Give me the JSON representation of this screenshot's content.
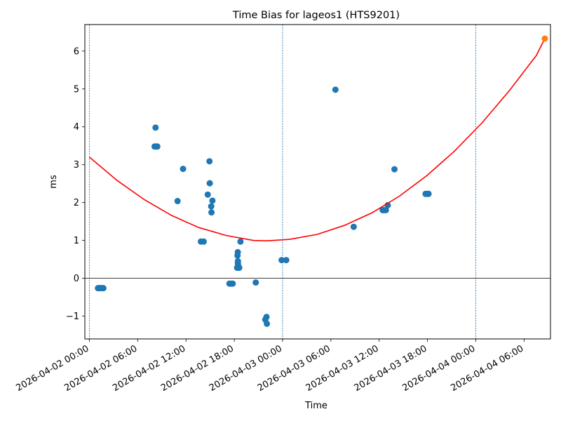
{
  "chart_data": {
    "type": "scatter",
    "title": "Time Bias for lageos1 (HTS9201)",
    "xlabel": "Time",
    "ylabel": "ms",
    "xlim": [
      "2026-04-01 23:26",
      "2026-04-04 09:17"
    ],
    "ylim": [
      -1.6,
      6.7
    ],
    "x_ticks": [
      "2026-04-02 00:00",
      "2026-04-02 06:00",
      "2026-04-02 12:00",
      "2026-04-02 18:00",
      "2026-04-03 00:00",
      "2026-04-03 06:00",
      "2026-04-03 12:00",
      "2026-04-03 18:00",
      "2026-04-04 00:00",
      "2026-04-04 06:00"
    ],
    "y_ticks": [
      -1,
      0,
      1,
      2,
      3,
      4,
      5,
      6
    ],
    "y_tick_labels": [
      "−1",
      "0",
      "1",
      "2",
      "3",
      "4",
      "5",
      "6"
    ],
    "day_boundaries": [
      "2026-04-02 00:00",
      "2026-04-03 00:00",
      "2026-04-04 00:00"
    ],
    "zero_line": 0,
    "grid": false,
    "colors": {
      "observations": "#1f77b4",
      "fit": "#ff0000",
      "prediction": "#ff7f0e",
      "day_line": "#1f77b4",
      "zero_line": "#000000"
    },
    "observations": [
      {
        "x": "2026-04-02 01:04",
        "y": -0.26
      },
      {
        "x": "2026-04-02 01:12",
        "y": -0.26
      },
      {
        "x": "2026-04-02 01:20",
        "y": -0.26
      },
      {
        "x": "2026-04-02 01:28",
        "y": -0.26
      },
      {
        "x": "2026-04-02 01:36",
        "y": -0.26
      },
      {
        "x": "2026-04-02 01:44",
        "y": -0.26
      },
      {
        "x": "2026-04-02 08:06",
        "y": 3.48
      },
      {
        "x": "2026-04-02 08:13",
        "y": 3.98
      },
      {
        "x": "2026-04-02 08:18",
        "y": 3.48
      },
      {
        "x": "2026-04-02 08:26",
        "y": 3.48
      },
      {
        "x": "2026-04-02 10:57",
        "y": 2.04
      },
      {
        "x": "2026-04-02 11:38",
        "y": 2.89
      },
      {
        "x": "2026-04-02 13:51",
        "y": 0.97
      },
      {
        "x": "2026-04-02 14:12",
        "y": 0.97
      },
      {
        "x": "2026-04-02 14:42",
        "y": 2.21
      },
      {
        "x": "2026-04-02 14:55",
        "y": 3.09
      },
      {
        "x": "2026-04-02 14:57",
        "y": 2.51
      },
      {
        "x": "2026-04-02 15:08",
        "y": 1.9
      },
      {
        "x": "2026-04-02 15:10",
        "y": 1.74
      },
      {
        "x": "2026-04-02 15:17",
        "y": 2.05
      },
      {
        "x": "2026-04-02 17:24",
        "y": -0.14
      },
      {
        "x": "2026-04-02 17:36",
        "y": -0.14
      },
      {
        "x": "2026-04-02 17:48",
        "y": -0.14
      },
      {
        "x": "2026-04-02 18:21",
        "y": 0.28
      },
      {
        "x": "2026-04-02 18:24",
        "y": 0.6
      },
      {
        "x": "2026-04-02 18:26",
        "y": 0.69
      },
      {
        "x": "2026-04-02 18:27",
        "y": 0.45
      },
      {
        "x": "2026-04-02 18:27",
        "y": 0.4
      },
      {
        "x": "2026-04-02 18:28",
        "y": 0.35
      },
      {
        "x": "2026-04-02 18:30",
        "y": 0.28
      },
      {
        "x": "2026-04-02 18:37",
        "y": 0.28
      },
      {
        "x": "2026-04-02 18:46",
        "y": 0.97
      },
      {
        "x": "2026-04-02 20:40",
        "y": -0.11
      },
      {
        "x": "2026-04-02 21:51",
        "y": -1.09
      },
      {
        "x": "2026-04-02 22:00",
        "y": -1.02
      },
      {
        "x": "2026-04-02 22:03",
        "y": -1.2
      },
      {
        "x": "2026-04-02 23:53",
        "y": 0.48
      },
      {
        "x": "2026-04-03 00:27",
        "y": 0.48
      },
      {
        "x": "2026-04-03 06:34",
        "y": 4.98
      },
      {
        "x": "2026-04-03 08:50",
        "y": 1.36
      },
      {
        "x": "2026-04-03 12:26",
        "y": 1.8
      },
      {
        "x": "2026-04-03 12:38",
        "y": 1.8
      },
      {
        "x": "2026-04-03 12:50",
        "y": 1.8
      },
      {
        "x": "2026-04-03 13:04",
        "y": 1.93
      },
      {
        "x": "2026-04-03 13:54",
        "y": 2.88
      },
      {
        "x": "2026-04-03 17:46",
        "y": 2.23
      },
      {
        "x": "2026-04-03 17:58",
        "y": 2.23
      },
      {
        "x": "2026-04-03 18:08",
        "y": 2.23
      }
    ],
    "fit_curve": {
      "x": [
        "2026-04-02 00:00",
        "2026-04-02 03:24",
        "2026-04-02 06:48",
        "2026-04-02 10:12",
        "2026-04-02 13:36",
        "2026-04-02 17:00",
        "2026-04-02 20:24",
        "2026-04-02 22:07",
        "2026-04-03 00:55",
        "2026-04-03 04:19",
        "2026-04-03 07:43",
        "2026-04-03 11:07",
        "2026-04-03 14:31",
        "2026-04-03 17:55",
        "2026-04-03 21:19",
        "2026-04-04 00:43",
        "2026-04-04 04:07",
        "2026-04-04 07:31",
        "2026-04-04 08:35"
      ],
      "y": [
        3.2,
        2.59,
        2.08,
        1.66,
        1.34,
        1.13,
        1.0,
        0.99,
        1.03,
        1.16,
        1.4,
        1.73,
        2.17,
        2.71,
        3.35,
        4.09,
        4.94,
        5.88,
        6.33
      ]
    },
    "prediction_point": {
      "x": "2026-04-04 08:35",
      "y": 6.33
    }
  }
}
